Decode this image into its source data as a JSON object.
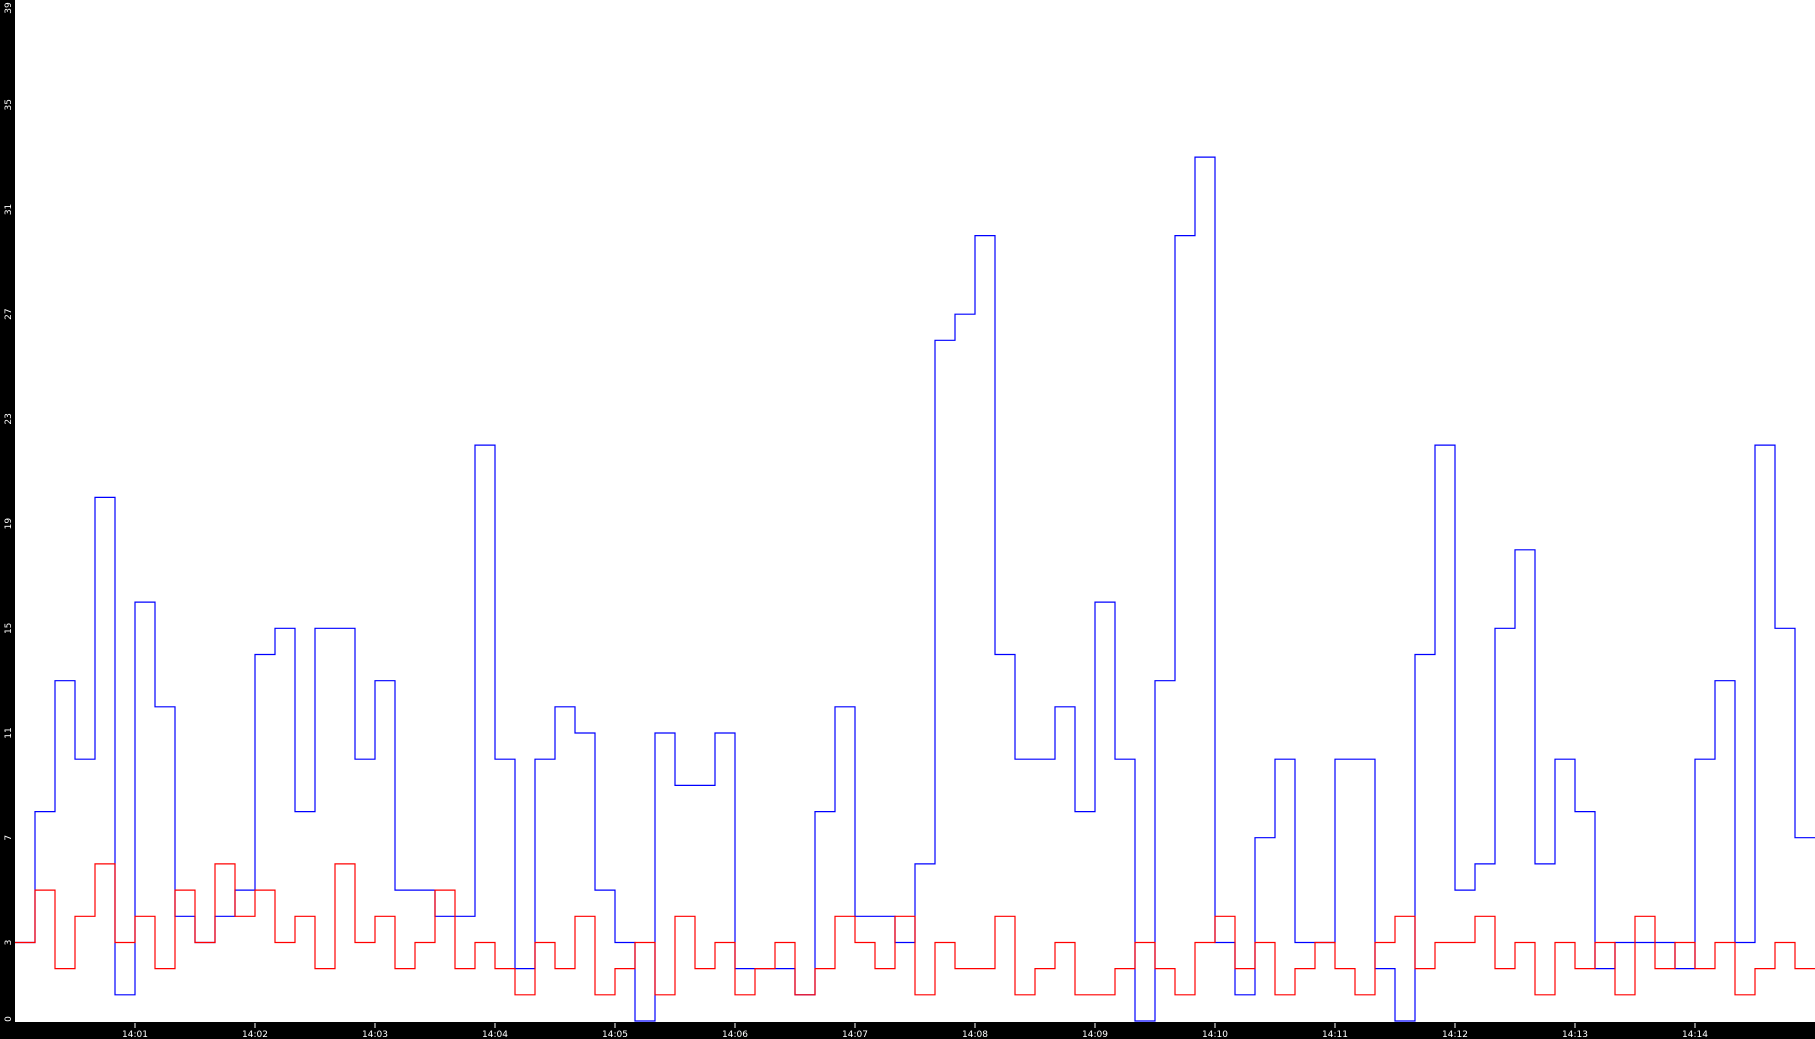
{
  "chart_data": {
    "type": "line",
    "title": "",
    "xlabel": "",
    "ylabel": "",
    "xlim": [
      "14:00:00",
      "14:15:00"
    ],
    "ylim": [
      0,
      39
    ],
    "y_ticks": [
      0,
      3,
      7,
      11,
      15,
      19,
      23,
      27,
      31,
      35,
      39
    ],
    "x_ticks": [
      "14:01",
      "14:02",
      "14:03",
      "14:04",
      "14:05",
      "14:06",
      "14:07",
      "14:08",
      "14:09",
      "14:10",
      "14:11",
      "14:12",
      "14:13",
      "14:14"
    ],
    "grid": false,
    "background": "#ffffff",
    "x": [
      "14:00:00",
      "14:00:10",
      "14:00:20",
      "14:00:30",
      "14:00:40",
      "14:00:50",
      "14:01:00",
      "14:01:10",
      "14:01:20",
      "14:01:30",
      "14:01:40",
      "14:01:50",
      "14:02:00",
      "14:02:10",
      "14:02:20",
      "14:02:30",
      "14:02:40",
      "14:02:50",
      "14:03:00",
      "14:03:10",
      "14:03:20",
      "14:03:30",
      "14:03:40",
      "14:03:50",
      "14:04:00",
      "14:04:10",
      "14:04:20",
      "14:04:30",
      "14:04:40",
      "14:04:50",
      "14:05:00",
      "14:05:10",
      "14:05:20",
      "14:05:30",
      "14:05:40",
      "14:05:50",
      "14:06:00",
      "14:06:10",
      "14:06:20",
      "14:06:30",
      "14:06:40",
      "14:06:50",
      "14:07:00",
      "14:07:10",
      "14:07:20",
      "14:07:30",
      "14:07:40",
      "14:07:50",
      "14:08:00",
      "14:08:10",
      "14:08:20",
      "14:08:30",
      "14:08:40",
      "14:08:50",
      "14:09:00",
      "14:09:10",
      "14:09:20",
      "14:09:30",
      "14:09:40",
      "14:09:50",
      "14:10:00",
      "14:10:10",
      "14:10:20",
      "14:10:30",
      "14:10:40",
      "14:10:50",
      "14:11:00",
      "14:11:10",
      "14:11:20",
      "14:11:30",
      "14:11:40",
      "14:11:50",
      "14:12:00",
      "14:12:10",
      "14:12:20",
      "14:12:30",
      "14:12:40",
      "14:12:50",
      "14:13:00",
      "14:13:10",
      "14:13:20",
      "14:13:30",
      "14:13:40",
      "14:13:50",
      "14:14:00",
      "14:14:10",
      "14:14:20",
      "14:14:30",
      "14:14:40",
      "14:14:50"
    ],
    "series": [
      {
        "color": "#0000ff",
        "values": [
          3,
          8,
          13,
          10,
          20,
          1,
          16,
          12,
          4,
          3,
          4,
          5,
          14,
          15,
          8,
          15,
          15,
          10,
          13,
          5,
          5,
          4,
          4,
          22,
          10,
          2,
          10,
          12,
          11,
          5,
          3,
          0,
          11,
          9,
          9,
          11,
          2,
          2,
          2,
          1,
          8,
          12,
          4,
          4,
          3,
          6,
          26,
          27,
          30,
          14,
          10,
          10,
          12,
          8,
          16,
          10,
          0,
          13,
          30,
          33,
          3,
          1,
          7,
          10,
          3,
          3,
          10,
          10,
          2,
          0,
          14,
          22,
          5,
          6,
          15,
          18,
          6,
          10,
          8,
          2,
          3,
          3,
          3,
          2,
          10,
          13,
          3,
          22,
          15,
          7
        ]
      },
      {
        "color": "#ff0000",
        "values": [
          3,
          5,
          2,
          4,
          6,
          3,
          4,
          2,
          5,
          3,
          6,
          4,
          5,
          3,
          4,
          2,
          6,
          3,
          4,
          2,
          3,
          5,
          2,
          3,
          2,
          1,
          3,
          2,
          4,
          1,
          2,
          3,
          1,
          4,
          2,
          3,
          1,
          2,
          3,
          1,
          2,
          4,
          3,
          2,
          4,
          1,
          3,
          2,
          2,
          4,
          1,
          2,
          3,
          1,
          1,
          2,
          3,
          2,
          1,
          3,
          4,
          2,
          3,
          1,
          2,
          3,
          2,
          1,
          3,
          4,
          2,
          3,
          3,
          4,
          2,
          3,
          1,
          3,
          2,
          3,
          1,
          4,
          2,
          3,
          2,
          3,
          1,
          2,
          3,
          2
        ]
      }
    ]
  }
}
